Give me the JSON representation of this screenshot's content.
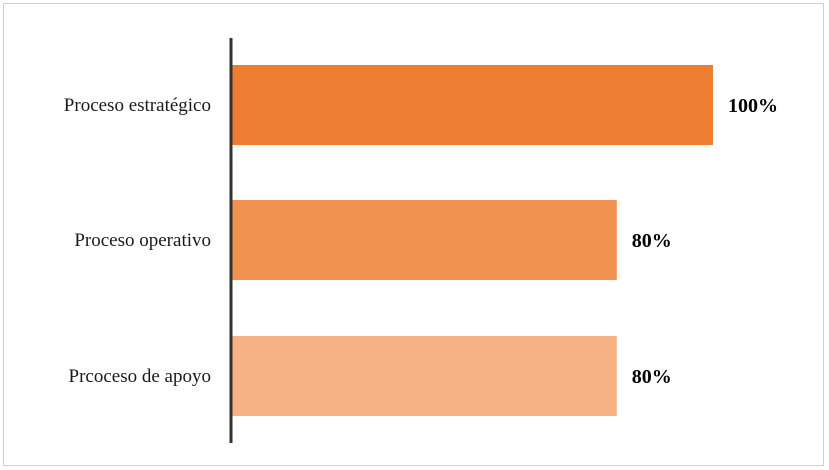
{
  "chart_data": {
    "type": "bar",
    "orientation": "horizontal",
    "categories": [
      "Proceso estratégico",
      "Proceso operativo",
      "Prcoceso de apoyo"
    ],
    "values": [
      100,
      80,
      80
    ],
    "value_labels": [
      "100%",
      "80%",
      "80%"
    ],
    "title": "",
    "xlabel": "",
    "ylabel": "",
    "xlim": [
      0,
      100
    ],
    "grid": false,
    "legend": "none",
    "colors": [
      "#ED7D31",
      "#F09350",
      "#F4B183"
    ]
  }
}
